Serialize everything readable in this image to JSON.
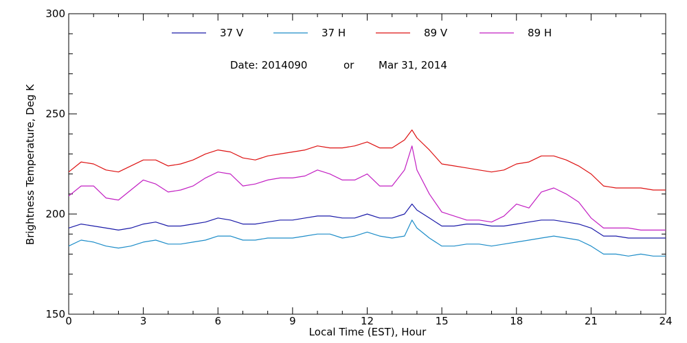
{
  "chart_data": {
    "type": "line",
    "title": "",
    "xlabel": "Local Time (EST), Hour",
    "ylabel": "Brightness Temperature, Deg K",
    "xlim": [
      0,
      24
    ],
    "ylim": [
      150,
      300
    ],
    "xticks": [
      0,
      3,
      6,
      9,
      12,
      15,
      18,
      21,
      24
    ],
    "yticks": [
      150,
      200,
      250,
      300
    ],
    "grid": false,
    "legend_position": "top-center",
    "annotation": {
      "date_label": "Date: 2014090",
      "or_label": "or",
      "date_text": "Mar 31, 2014"
    },
    "series": [
      {
        "name": "37 V",
        "color": "#1a1aa8",
        "x": [
          0,
          0.5,
          1,
          1.5,
          2,
          2.5,
          3,
          3.5,
          4,
          4.5,
          5,
          5.5,
          6,
          6.5,
          7,
          7.5,
          8,
          8.5,
          9,
          9.5,
          10,
          10.5,
          11,
          11.5,
          12,
          12.5,
          13,
          13.5,
          13.8,
          14,
          14.5,
          15,
          15.5,
          16,
          16.5,
          17,
          17.5,
          18,
          18.5,
          19,
          19.5,
          20,
          20.5,
          21,
          21.5,
          22,
          22.5,
          23,
          23.5,
          24
        ],
        "y": [
          193,
          195,
          194,
          193,
          192,
          193,
          195,
          196,
          194,
          194,
          195,
          196,
          198,
          197,
          195,
          195,
          196,
          197,
          197,
          198,
          199,
          199,
          198,
          198,
          200,
          198,
          198,
          200,
          205,
          202,
          198,
          194,
          194,
          195,
          195,
          194,
          194,
          195,
          196,
          197,
          197,
          196,
          195,
          193,
          189,
          189,
          188,
          188,
          188,
          188
        ]
      },
      {
        "name": "37 H",
        "color": "#1c8cc8",
        "x": [
          0,
          0.5,
          1,
          1.5,
          2,
          2.5,
          3,
          3.5,
          4,
          4.5,
          5,
          5.5,
          6,
          6.5,
          7,
          7.5,
          8,
          8.5,
          9,
          9.5,
          10,
          10.5,
          11,
          11.5,
          12,
          12.5,
          13,
          13.5,
          13.8,
          14,
          14.5,
          15,
          15.5,
          16,
          16.5,
          17,
          17.5,
          18,
          18.5,
          19,
          19.5,
          20,
          20.5,
          21,
          21.5,
          22,
          22.5,
          23,
          23.5,
          24
        ],
        "y": [
          184,
          187,
          186,
          184,
          183,
          184,
          186,
          187,
          185,
          185,
          186,
          187,
          189,
          189,
          187,
          187,
          188,
          188,
          188,
          189,
          190,
          190,
          188,
          189,
          191,
          189,
          188,
          189,
          197,
          193,
          188,
          184,
          184,
          185,
          185,
          184,
          185,
          186,
          187,
          188,
          189,
          188,
          187,
          184,
          180,
          180,
          179,
          180,
          179,
          179
        ]
      },
      {
        "name": "89 V",
        "color": "#dd1111",
        "x": [
          0,
          0.5,
          1,
          1.5,
          2,
          2.5,
          3,
          3.5,
          4,
          4.5,
          5,
          5.5,
          6,
          6.5,
          7,
          7.5,
          8,
          8.5,
          9,
          9.5,
          10,
          10.5,
          11,
          11.5,
          12,
          12.5,
          13,
          13.5,
          13.8,
          14,
          14.5,
          15,
          15.5,
          16,
          16.5,
          17,
          17.5,
          18,
          18.5,
          19,
          19.5,
          20,
          20.5,
          21,
          21.5,
          22,
          22.5,
          23,
          23.5,
          24
        ],
        "y": [
          221,
          226,
          225,
          222,
          221,
          224,
          227,
          227,
          224,
          225,
          227,
          230,
          232,
          231,
          228,
          227,
          229,
          230,
          231,
          232,
          234,
          233,
          233,
          234,
          236,
          233,
          233,
          237,
          242,
          238,
          232,
          225,
          224,
          223,
          222,
          221,
          222,
          225,
          226,
          229,
          229,
          227,
          224,
          220,
          214,
          213,
          213,
          213,
          212,
          212
        ]
      },
      {
        "name": "89 H",
        "color": "#c21ec2",
        "x": [
          0,
          0.5,
          1,
          1.5,
          2,
          2.5,
          3,
          3.5,
          4,
          4.5,
          5,
          5.5,
          6,
          6.5,
          7,
          7.5,
          8,
          8.5,
          9,
          9.5,
          10,
          10.5,
          11,
          11.5,
          12,
          12.5,
          13,
          13.5,
          13.8,
          14,
          14.5,
          15,
          15.5,
          16,
          16.5,
          17,
          17.5,
          18,
          18.5,
          19,
          19.5,
          20,
          20.5,
          21,
          21.5,
          22,
          22.5,
          23,
          23.5,
          24
        ],
        "y": [
          209,
          214,
          214,
          208,
          207,
          212,
          217,
          215,
          211,
          212,
          214,
          218,
          221,
          220,
          214,
          215,
          217,
          218,
          218,
          219,
          222,
          220,
          217,
          217,
          220,
          214,
          214,
          222,
          234,
          222,
          210,
          201,
          199,
          197,
          197,
          196,
          199,
          205,
          203,
          211,
          213,
          210,
          206,
          198,
          193,
          193,
          193,
          192,
          192,
          192
        ]
      }
    ]
  }
}
